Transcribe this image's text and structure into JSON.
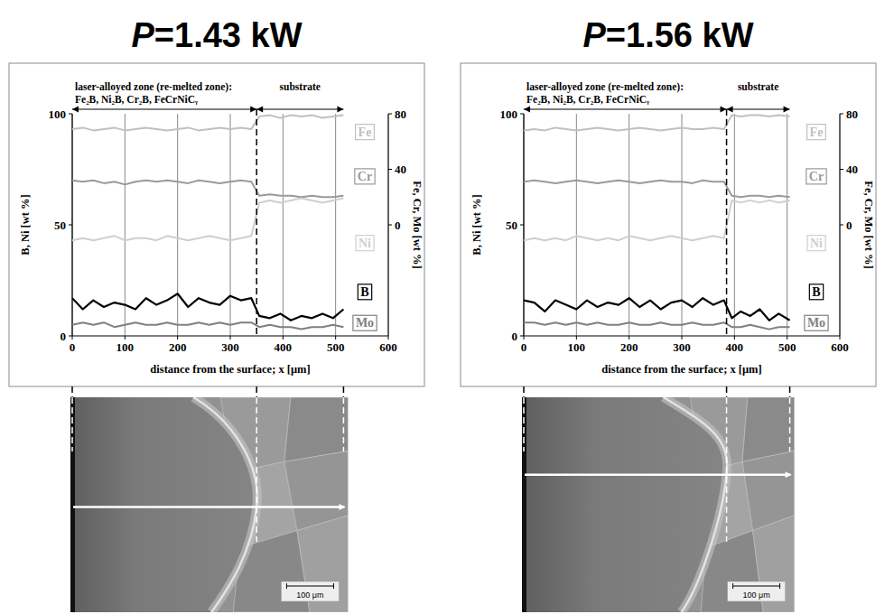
{
  "chart_data": [
    {
      "type": "line",
      "title": "P=1.43 kW",
      "xlabel": "distance from the surface; x [μm]",
      "ylabel": "B, Ni [wt %]",
      "y2label": "Fe, Cr, Mo [wt %]",
      "xlim": [
        0,
        600
      ],
      "xticks": [
        0,
        100,
        200,
        300,
        400,
        500,
        600
      ],
      "ylim": [
        0,
        100
      ],
      "yticks": [
        0,
        50,
        100
      ],
      "y2lim": [
        -80,
        80
      ],
      "y2ticks": [
        0,
        40,
        80
      ],
      "grid": "x",
      "annotations": {
        "zone_label": "laser-alloyed zone (re-melted zone):",
        "phases": "Fe₂B, Ni₂B, Cr₂B, FeCrNiCᵧ",
        "substrate_label": "substrate",
        "boundary": 350
      },
      "x": [
        0,
        20,
        40,
        60,
        80,
        100,
        120,
        140,
        160,
        180,
        200,
        220,
        240,
        260,
        280,
        300,
        320,
        340,
        355,
        375,
        395,
        415,
        435,
        455,
        475,
        495,
        515
      ],
      "series": [
        {
          "name": "Fe",
          "color": "#c0c0c0",
          "axis": "y2",
          "values": [
            69,
            70,
            68,
            69,
            70,
            68,
            69,
            70,
            69,
            68,
            69,
            70,
            68,
            69,
            70,
            69,
            70,
            69,
            78,
            79,
            77,
            79,
            78,
            79,
            77,
            78,
            79
          ]
        },
        {
          "name": "Cr",
          "color": "#9a9a9a",
          "axis": "y2",
          "values": [
            32,
            31,
            32,
            30,
            31,
            29,
            31,
            32,
            31,
            32,
            31,
            30,
            32,
            31,
            30,
            31,
            32,
            31,
            21,
            22,
            21,
            21,
            20,
            21,
            20,
            20,
            21
          ]
        },
        {
          "name": "Ni",
          "color": "#cfcfcf",
          "values": [
            43,
            44,
            43,
            44,
            45,
            43,
            44,
            44,
            43,
            45,
            44,
            43,
            44,
            45,
            44,
            43,
            44,
            45,
            60,
            61,
            60,
            61,
            62,
            61,
            60,
            61,
            62
          ]
        },
        {
          "name": "B",
          "color": "#000000",
          "values": [
            17,
            12,
            16,
            13,
            15,
            14,
            12,
            17,
            14,
            16,
            19,
            13,
            17,
            15,
            14,
            18,
            16,
            17,
            9,
            8,
            10,
            7,
            9,
            8,
            10,
            8,
            12
          ]
        },
        {
          "name": "Mo",
          "color": "#808080",
          "values": [
            5,
            6,
            5,
            6,
            4,
            5,
            6,
            5,
            5,
            6,
            5,
            5,
            6,
            5,
            6,
            5,
            6,
            6,
            4,
            5,
            4,
            4,
            3,
            4,
            4,
            5,
            4
          ]
        }
      ]
    },
    {
      "type": "line",
      "title": "P=1.56 kW",
      "xlabel": "distance from the surface; x [μm]",
      "ylabel": "B, Ni [wt %]",
      "y2label": "Fe, Cr, Mo [wt %]",
      "xlim": [
        0,
        600
      ],
      "xticks": [
        0,
        100,
        200,
        300,
        400,
        500,
        600
      ],
      "ylim": [
        0,
        100
      ],
      "yticks": [
        0,
        50,
        100
      ],
      "y2lim": [
        -80,
        80
      ],
      "y2ticks": [
        0,
        40,
        80
      ],
      "grid": "x",
      "annotations": {
        "zone_label": "laser-alloyed zone (re-melted zone):",
        "phases": "Fe₂B, Ni₂B, Cr₂B, FeCrNiCᵧ",
        "substrate_label": "substrate",
        "boundary": 385
      },
      "x": [
        0,
        20,
        40,
        60,
        80,
        100,
        120,
        140,
        160,
        180,
        200,
        220,
        240,
        260,
        280,
        300,
        320,
        340,
        360,
        380,
        395,
        412,
        430,
        448,
        466,
        484,
        505
      ],
      "series": [
        {
          "name": "Fe",
          "color": "#c0c0c0",
          "axis": "y2",
          "values": [
            68,
            69,
            68,
            70,
            69,
            68,
            69,
            70,
            69,
            68,
            69,
            70,
            69,
            68,
            69,
            70,
            69,
            69,
            70,
            69,
            79,
            78,
            79,
            79,
            78,
            79,
            78
          ]
        },
        {
          "name": "Cr",
          "color": "#9a9a9a",
          "axis": "y2",
          "values": [
            31,
            32,
            31,
            30,
            31,
            32,
            31,
            30,
            31,
            32,
            31,
            30,
            31,
            32,
            31,
            31,
            30,
            32,
            31,
            31,
            21,
            20,
            21,
            21,
            20,
            21,
            20
          ]
        },
        {
          "name": "Ni",
          "color": "#cfcfcf",
          "values": [
            43,
            44,
            43,
            44,
            43,
            45,
            44,
            43,
            44,
            43,
            45,
            44,
            43,
            44,
            45,
            44,
            43,
            44,
            45,
            44,
            61,
            60,
            61,
            60,
            61,
            60,
            61
          ]
        },
        {
          "name": "B",
          "color": "#000000",
          "values": [
            16,
            15,
            11,
            16,
            14,
            12,
            16,
            13,
            15,
            14,
            17,
            13,
            16,
            12,
            15,
            16,
            13,
            17,
            14,
            16,
            8,
            11,
            9,
            12,
            7,
            10,
            7
          ]
        },
        {
          "name": "Mo",
          "color": "#808080",
          "values": [
            6,
            6,
            5,
            6,
            5,
            6,
            5,
            6,
            5,
            5,
            6,
            5,
            5,
            6,
            5,
            5,
            6,
            5,
            5,
            6,
            4,
            4,
            5,
            4,
            3,
            4,
            4
          ]
        }
      ]
    }
  ],
  "micrographs": [
    {
      "scale_label": "100 μm"
    },
    {
      "scale_label": "100 μm"
    }
  ]
}
